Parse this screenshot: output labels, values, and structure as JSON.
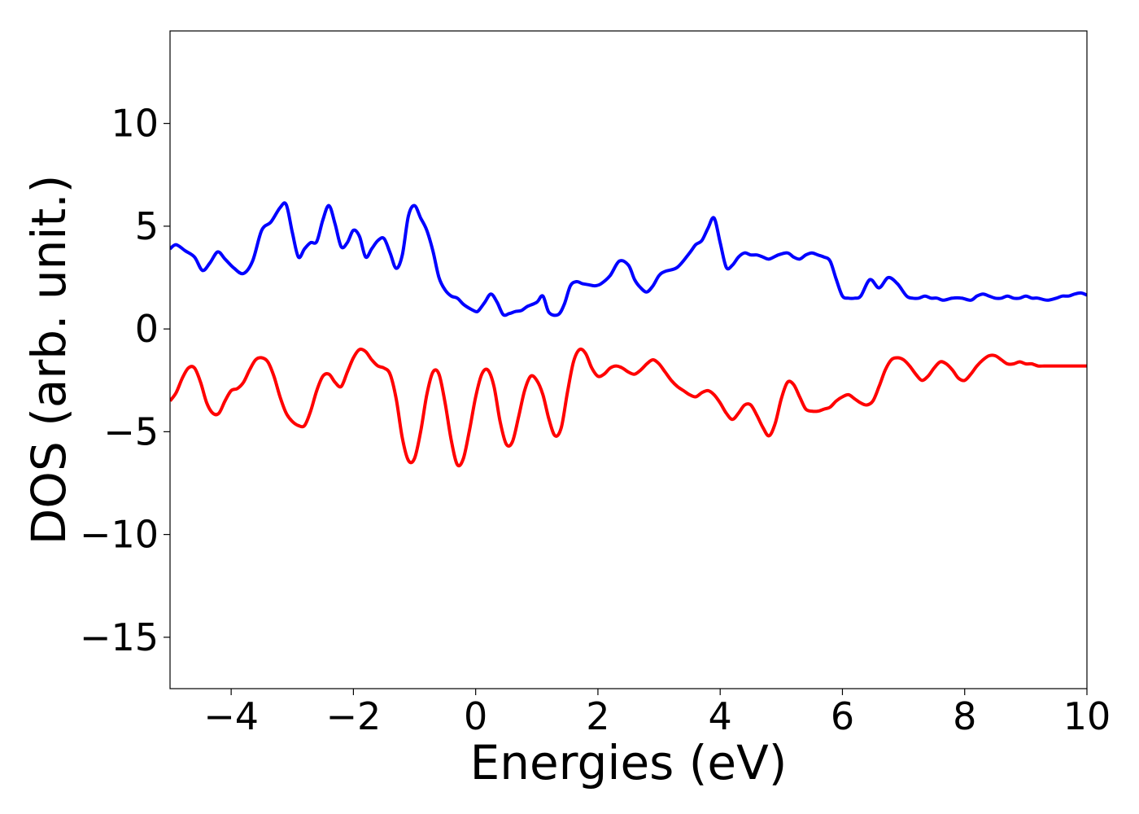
{
  "chart_data": {
    "type": "line",
    "title": "",
    "xlabel": "Energies (eV)",
    "ylabel": "DOS (arb. unit.)",
    "xlim": [
      -5,
      10
    ],
    "ylim": [
      -17.5,
      14.5
    ],
    "xticks": [
      -4,
      -2,
      0,
      2,
      4,
      6,
      8,
      10
    ],
    "xtick_labels": [
      "−4",
      "−2",
      "0",
      "2",
      "4",
      "6",
      "8",
      "10"
    ],
    "yticks": [
      -15,
      -10,
      -5,
      0,
      5,
      10
    ],
    "ytick_labels": [
      "−15",
      "−10",
      "−5",
      "0",
      "5",
      "10"
    ],
    "grid": false,
    "legend": "none",
    "series": [
      {
        "color": "#0000ff",
        "x": [
          -5.0,
          -4.9,
          -4.75,
          -4.6,
          -4.47,
          -4.35,
          -4.22,
          -4.1,
          -3.95,
          -3.8,
          -3.65,
          -3.5,
          -3.35,
          -3.2,
          -3.1,
          -3.0,
          -2.9,
          -2.8,
          -2.7,
          -2.6,
          -2.5,
          -2.4,
          -2.3,
          -2.2,
          -2.1,
          -2.0,
          -1.9,
          -1.8,
          -1.7,
          -1.6,
          -1.5,
          -1.4,
          -1.3,
          -1.2,
          -1.1,
          -1.0,
          -0.9,
          -0.8,
          -0.7,
          -0.6,
          -0.5,
          -0.4,
          -0.3,
          -0.2,
          -0.1,
          0.0,
          0.05,
          0.15,
          0.25,
          0.35,
          0.45,
          0.55,
          0.65,
          0.75,
          0.85,
          1.0,
          1.1,
          1.2,
          1.35,
          1.45,
          1.55,
          1.65,
          1.75,
          1.85,
          1.95,
          2.05,
          2.2,
          2.35,
          2.5,
          2.6,
          2.7,
          2.8,
          2.9,
          3.0,
          3.1,
          3.3,
          3.5,
          3.6,
          3.7,
          3.8,
          3.9,
          4.0,
          4.1,
          4.2,
          4.3,
          4.4,
          4.5,
          4.6,
          4.7,
          4.8,
          4.95,
          5.1,
          5.2,
          5.3,
          5.4,
          5.5,
          5.6,
          5.7,
          5.8,
          5.9,
          6.0,
          6.1,
          6.2,
          6.3,
          6.45,
          6.6,
          6.75,
          6.9,
          7.05,
          7.15,
          7.25,
          7.35,
          7.45,
          7.55,
          7.65,
          7.8,
          7.95,
          8.1,
          8.2,
          8.3,
          8.4,
          8.5,
          8.6,
          8.7,
          8.8,
          8.9,
          9.0,
          9.1,
          9.2,
          9.35,
          9.5,
          9.6,
          9.7,
          9.8,
          9.9,
          10.0
        ],
        "y": [
          3.9,
          4.1,
          3.8,
          3.5,
          2.85,
          3.2,
          3.75,
          3.4,
          2.95,
          2.7,
          3.3,
          4.8,
          5.2,
          5.9,
          6.05,
          4.7,
          3.5,
          3.9,
          4.2,
          4.25,
          5.3,
          6.0,
          5.1,
          4.0,
          4.2,
          4.8,
          4.5,
          3.5,
          3.9,
          4.3,
          4.4,
          3.7,
          2.95,
          3.6,
          5.5,
          6.0,
          5.4,
          4.8,
          3.8,
          2.5,
          1.9,
          1.6,
          1.5,
          1.2,
          1.0,
          0.85,
          0.9,
          1.3,
          1.7,
          1.3,
          0.7,
          0.75,
          0.85,
          0.9,
          1.1,
          1.3,
          1.6,
          0.8,
          0.7,
          1.2,
          2.1,
          2.3,
          2.2,
          2.15,
          2.1,
          2.2,
          2.6,
          3.3,
          3.1,
          2.4,
          2.0,
          1.8,
          2.1,
          2.6,
          2.8,
          3.0,
          3.7,
          4.1,
          4.3,
          4.9,
          5.4,
          4.2,
          3.0,
          3.1,
          3.5,
          3.7,
          3.6,
          3.6,
          3.5,
          3.4,
          3.6,
          3.7,
          3.5,
          3.4,
          3.6,
          3.7,
          3.6,
          3.5,
          3.3,
          2.4,
          1.6,
          1.5,
          1.5,
          1.6,
          2.4,
          2.0,
          2.5,
          2.2,
          1.6,
          1.5,
          1.5,
          1.6,
          1.5,
          1.5,
          1.4,
          1.5,
          1.5,
          1.4,
          1.6,
          1.7,
          1.6,
          1.5,
          1.5,
          1.6,
          1.5,
          1.5,
          1.6,
          1.5,
          1.5,
          1.4,
          1.5,
          1.6,
          1.6,
          1.7,
          1.75,
          1.65
        ]
      },
      {
        "color": "#ff0000",
        "x": [
          -5.0,
          -4.9,
          -4.8,
          -4.7,
          -4.6,
          -4.5,
          -4.4,
          -4.3,
          -4.2,
          -4.1,
          -4.0,
          -3.9,
          -3.8,
          -3.7,
          -3.6,
          -3.5,
          -3.4,
          -3.3,
          -3.2,
          -3.1,
          -3.0,
          -2.9,
          -2.8,
          -2.7,
          -2.6,
          -2.5,
          -2.4,
          -2.3,
          -2.2,
          -2.1,
          -2.0,
          -1.9,
          -1.8,
          -1.7,
          -1.6,
          -1.5,
          -1.4,
          -1.3,
          -1.2,
          -1.1,
          -1.0,
          -0.9,
          -0.8,
          -0.7,
          -0.6,
          -0.5,
          -0.4,
          -0.3,
          -0.2,
          -0.1,
          0.0,
          0.1,
          0.2,
          0.3,
          0.4,
          0.5,
          0.6,
          0.7,
          0.8,
          0.9,
          1.0,
          1.1,
          1.2,
          1.3,
          1.4,
          1.5,
          1.6,
          1.7,
          1.8,
          1.9,
          2.0,
          2.1,
          2.2,
          2.3,
          2.4,
          2.5,
          2.6,
          2.7,
          2.8,
          2.9,
          3.0,
          3.1,
          3.2,
          3.3,
          3.4,
          3.5,
          3.6,
          3.7,
          3.8,
          3.9,
          4.0,
          4.1,
          4.2,
          4.3,
          4.4,
          4.5,
          4.6,
          4.7,
          4.8,
          4.9,
          5.0,
          5.1,
          5.2,
          5.3,
          5.4,
          5.5,
          5.6,
          5.7,
          5.8,
          5.9,
          6.0,
          6.1,
          6.2,
          6.3,
          6.4,
          6.5,
          6.6,
          6.7,
          6.8,
          6.9,
          7.0,
          7.1,
          7.2,
          7.3,
          7.4,
          7.5,
          7.6,
          7.7,
          7.8,
          7.9,
          8.0,
          8.1,
          8.2,
          8.3,
          8.4,
          8.5,
          8.6,
          8.7,
          8.8,
          8.9,
          9.0,
          9.1,
          9.2,
          9.3,
          9.4,
          9.5,
          9.6,
          9.7,
          9.8,
          9.9,
          10.0
        ],
        "y": [
          -3.5,
          -3.1,
          -2.4,
          -1.9,
          -1.9,
          -2.6,
          -3.6,
          -4.1,
          -4.1,
          -3.5,
          -3.0,
          -2.9,
          -2.6,
          -2.0,
          -1.5,
          -1.4,
          -1.6,
          -2.3,
          -3.3,
          -4.1,
          -4.5,
          -4.7,
          -4.7,
          -4.0,
          -3.0,
          -2.3,
          -2.2,
          -2.6,
          -2.8,
          -2.1,
          -1.4,
          -1.0,
          -1.1,
          -1.5,
          -1.8,
          -1.9,
          -2.2,
          -3.4,
          -5.3,
          -6.4,
          -6.3,
          -5.0,
          -3.2,
          -2.1,
          -2.2,
          -3.6,
          -5.4,
          -6.6,
          -6.3,
          -4.9,
          -3.3,
          -2.2,
          -2.0,
          -2.8,
          -4.5,
          -5.6,
          -5.5,
          -4.3,
          -3.0,
          -2.3,
          -2.5,
          -3.2,
          -4.4,
          -5.2,
          -4.8,
          -3.1,
          -1.6,
          -1.0,
          -1.2,
          -1.9,
          -2.3,
          -2.2,
          -1.9,
          -1.8,
          -1.9,
          -2.1,
          -2.2,
          -2.0,
          -1.7,
          -1.5,
          -1.7,
          -2.1,
          -2.5,
          -2.8,
          -3.0,
          -3.2,
          -3.3,
          -3.1,
          -3.0,
          -3.2,
          -3.6,
          -4.1,
          -4.4,
          -4.1,
          -3.7,
          -3.7,
          -4.2,
          -4.8,
          -5.2,
          -4.6,
          -3.4,
          -2.6,
          -2.7,
          -3.3,
          -3.9,
          -4.0,
          -4.0,
          -3.9,
          -3.8,
          -3.5,
          -3.3,
          -3.2,
          -3.4,
          -3.6,
          -3.7,
          -3.5,
          -2.8,
          -2.0,
          -1.5,
          -1.4,
          -1.5,
          -1.8,
          -2.2,
          -2.5,
          -2.3,
          -1.9,
          -1.6,
          -1.7,
          -2.0,
          -2.4,
          -2.5,
          -2.2,
          -1.8,
          -1.5,
          -1.3,
          -1.3,
          -1.5,
          -1.7,
          -1.7,
          -1.6,
          -1.7,
          -1.7,
          -1.8,
          -1.8,
          -1.8,
          -1.8,
          -1.8,
          -1.8,
          -1.8,
          -1.8,
          -1.8
        ]
      }
    ]
  }
}
